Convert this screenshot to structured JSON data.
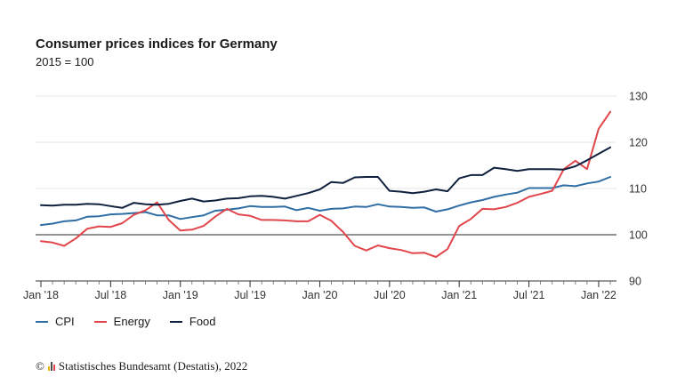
{
  "title": "Consumer prices indices for Germany",
  "subtitle": "2015 = 100",
  "source": {
    "copyright": "©",
    "text": "Statistisches Bundesamt (Destatis), 2022"
  },
  "colors": {
    "CPI": "#2f6ea5",
    "Energy": "#e0464b",
    "Food": "#10213f",
    "grid": "#e6e6e6",
    "baseline": "#555555",
    "axis_text": "#333333"
  },
  "chart_data": {
    "type": "line",
    "title": "Consumer prices indices for Germany",
    "subtitle": "2015 = 100",
    "x": [
      "2018-01",
      "2018-02",
      "2018-03",
      "2018-04",
      "2018-05",
      "2018-06",
      "2018-07",
      "2018-08",
      "2018-09",
      "2018-10",
      "2018-11",
      "2018-12",
      "2019-01",
      "2019-02",
      "2019-03",
      "2019-04",
      "2019-05",
      "2019-06",
      "2019-07",
      "2019-08",
      "2019-09",
      "2019-10",
      "2019-11",
      "2019-12",
      "2020-01",
      "2020-02",
      "2020-03",
      "2020-04",
      "2020-05",
      "2020-06",
      "2020-07",
      "2020-08",
      "2020-09",
      "2020-10",
      "2020-11",
      "2020-12",
      "2021-01",
      "2021-02",
      "2021-03",
      "2021-04",
      "2021-05",
      "2021-06",
      "2021-07",
      "2021-08",
      "2021-09",
      "2021-10",
      "2021-11",
      "2021-12",
      "2022-01",
      "2022-02",
      "2022-03"
    ],
    "series": [
      {
        "name": "CPI",
        "values": [
          102.1,
          102.4,
          102.9,
          103.1,
          103.9,
          104.0,
          104.4,
          104.5,
          104.7,
          104.9,
          104.2,
          104.2,
          103.4,
          103.8,
          104.2,
          105.2,
          105.4,
          105.7,
          106.2,
          106.0,
          106.0,
          106.1,
          105.3,
          105.8,
          105.2,
          105.6,
          105.7,
          106.1,
          106.0,
          106.6,
          106.1,
          106.0,
          105.8,
          105.9,
          105.0,
          105.5,
          106.3,
          107.0,
          107.5,
          108.2,
          108.7,
          109.1,
          110.1,
          110.1,
          110.1,
          110.7,
          110.5,
          111.1,
          111.5,
          112.5,
          null
        ]
      },
      {
        "name": "Energy",
        "values": [
          98.6,
          98.3,
          97.6,
          99.2,
          101.3,
          101.8,
          101.7,
          102.5,
          104.3,
          105.3,
          107.0,
          103.2,
          100.9,
          101.1,
          101.9,
          103.9,
          105.6,
          104.4,
          104.1,
          103.2,
          103.2,
          103.1,
          102.9,
          102.9,
          104.3,
          103.0,
          100.6,
          97.6,
          96.6,
          97.7,
          97.1,
          96.7,
          96.0,
          96.1,
          95.2,
          96.9,
          101.9,
          103.4,
          105.6,
          105.5,
          106.0,
          106.9,
          108.2,
          108.8,
          109.5,
          114.2,
          116.0,
          114.2,
          122.9,
          126.6,
          null
        ]
      },
      {
        "name": "Food",
        "values": [
          106.4,
          106.3,
          106.5,
          106.5,
          106.7,
          106.6,
          106.2,
          105.8,
          106.9,
          106.6,
          106.5,
          106.7,
          107.3,
          107.8,
          107.2,
          107.4,
          107.8,
          107.9,
          108.3,
          108.4,
          108.2,
          107.8,
          108.4,
          109.0,
          109.8,
          111.4,
          111.2,
          112.4,
          112.5,
          112.5,
          109.5,
          109.3,
          109.0,
          109.3,
          109.8,
          109.4,
          112.2,
          112.9,
          112.9,
          114.5,
          114.2,
          113.8,
          114.2,
          114.2,
          114.2,
          114.1,
          114.8,
          116.1,
          117.5,
          118.9,
          null
        ]
      }
    ],
    "x_ticks": [
      {
        "date": "2018-01",
        "label": "Jan '18"
      },
      {
        "date": "2018-07",
        "label": "Jul '18"
      },
      {
        "date": "2019-01",
        "label": "Jan '19"
      },
      {
        "date": "2019-07",
        "label": "Jul '19"
      },
      {
        "date": "2020-01",
        "label": "Jan '20"
      },
      {
        "date": "2020-07",
        "label": "Jul '20"
      },
      {
        "date": "2021-01",
        "label": "Jan '21"
      },
      {
        "date": "2021-07",
        "label": "Jul '21"
      },
      {
        "date": "2022-01",
        "label": "Jan '22"
      }
    ],
    "y_ticks": [
      90,
      100,
      110,
      120,
      130
    ],
    "ylim": [
      90,
      130
    ],
    "baseline": 100,
    "grid": true,
    "y_axis_side": "right",
    "legend_position": "bottom-left"
  }
}
